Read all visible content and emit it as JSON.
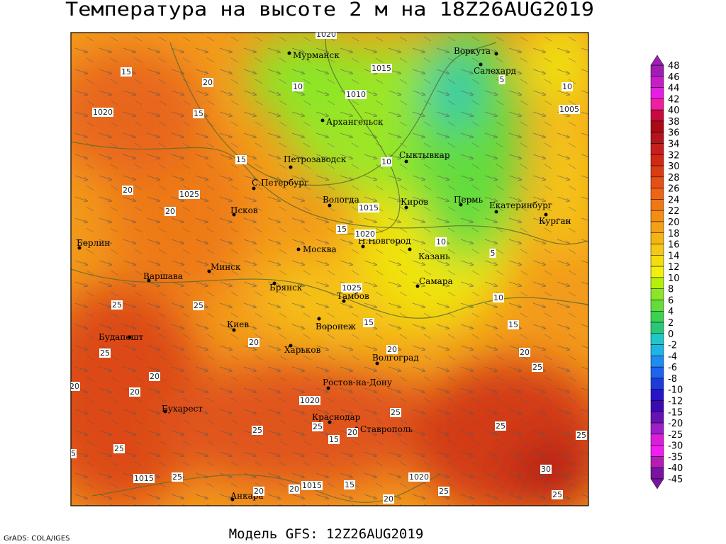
{
  "header": {
    "title": "Температура на высоте 2 м на 18Z26AUG2019"
  },
  "footer": {
    "model": "Модель GFS: 12Z26AUG2019",
    "credit": "GrADS: COLA/IGES"
  },
  "cities": [
    "Мурманск",
    "Воркута",
    "Салехард",
    "Архангельск",
    "Сыктывкар",
    "Петрозаводск",
    "С.Петербург",
    "Вологда",
    "Киров",
    "Пермь",
    "Екатеринбург",
    "Курган",
    "Псков",
    "Н.Новгород",
    "Москва",
    "Казань",
    "Берлин",
    "Варшава",
    "Минск",
    "Самара",
    "Брянск",
    "Тамбов",
    "Киев",
    "Воронеж",
    "Будапешт",
    "Харьков",
    "Волгоград",
    "Ростов-на-Дону",
    "Бухарест",
    "Краснодар",
    "Ставрополь",
    "Анкара"
  ],
  "contour_labels": [
    "1020",
    "15",
    "20",
    "15",
    "15",
    "20",
    "1025",
    "20",
    "1015",
    "1010",
    "10",
    "1020",
    "10",
    "1015",
    "15",
    "1020",
    "10",
    "5",
    "10",
    "1025",
    "15",
    "25",
    "25",
    "20",
    "25",
    "20",
    "20",
    "20",
    "20",
    "15",
    "20",
    "25",
    "1020",
    "25",
    "25",
    "20",
    "15",
    "25",
    "25",
    "25",
    "1005",
    "10",
    "5",
    "1015",
    "25",
    "20",
    "1015",
    "1020",
    "30",
    "25",
    "25",
    "20",
    "15",
    "25",
    "25",
    "20"
  ],
  "colorbar": {
    "labels": [
      "48",
      "46",
      "44",
      "42",
      "40",
      "38",
      "36",
      "34",
      "32",
      "30",
      "28",
      "26",
      "24",
      "22",
      "20",
      "18",
      "16",
      "14",
      "12",
      "10",
      "8",
      "6",
      "4",
      "2",
      "0",
      "-2",
      "-4",
      "-6",
      "-8",
      "-10",
      "-12",
      "-15",
      "-20",
      "-25",
      "-30",
      "-35",
      "-40",
      "-45"
    ],
    "colors": [
      "#a01eb4",
      "#c81ec8",
      "#e61ee6",
      "#f01ea0",
      "#c80a3c",
      "#aa0a14",
      "#b4141e",
      "#c81e1e",
      "#d22814",
      "#dc3c14",
      "#e65014",
      "#ee6414",
      "#f07814",
      "#f58c14",
      "#f5a014",
      "#f5b414",
      "#f5c814",
      "#f5dc0f",
      "#f0f00a",
      "#b4f00a",
      "#8ce628",
      "#64dc3c",
      "#3cd250",
      "#28c878",
      "#1ec8c8",
      "#1eb4e6",
      "#1e8cf0",
      "#1e64f0",
      "#1e3cdc",
      "#2814c8",
      "#3c0ab4",
      "#6414b4",
      "#a01ec8",
      "#dc1edc",
      "#f01ef0",
      "#b41eb4",
      "#7814a0"
    ]
  }
}
